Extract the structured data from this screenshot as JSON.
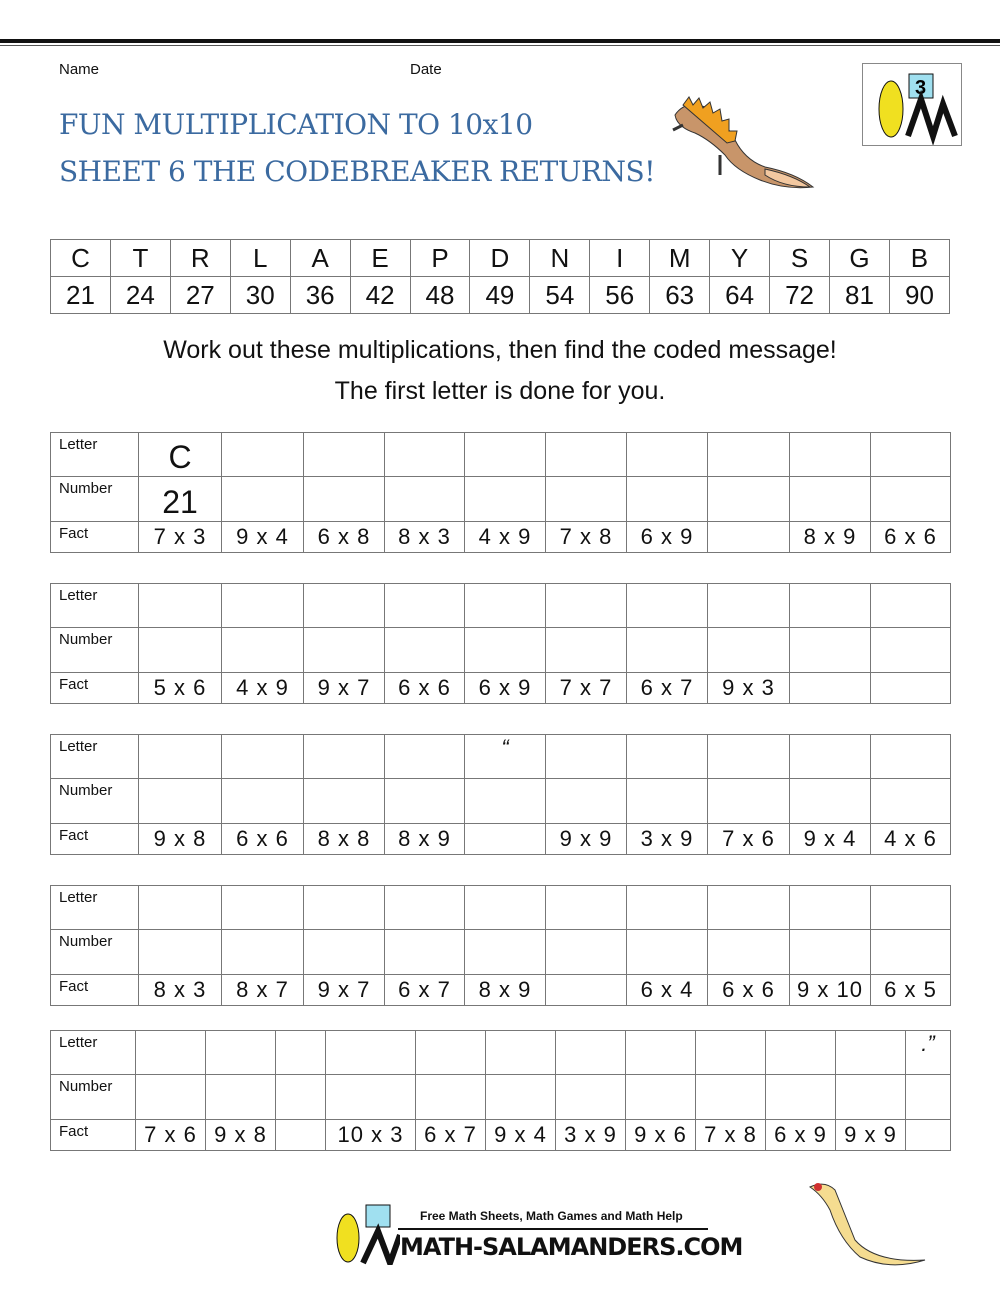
{
  "header": {
    "name_label": "Name",
    "date_label": "Date",
    "title_line1": "FUN MULTIPLICATION TO 10x10",
    "title_line2": "SHEET 6 THE CODEBREAKER RETURNS!",
    "corner_logo_number": "3"
  },
  "code_key": {
    "letters": [
      "C",
      "T",
      "R",
      "L",
      "A",
      "E",
      "P",
      "D",
      "N",
      "I",
      "M",
      "Y",
      "S",
      "G",
      "B"
    ],
    "numbers": [
      "21",
      "24",
      "27",
      "30",
      "36",
      "42",
      "48",
      "49",
      "54",
      "56",
      "63",
      "64",
      "72",
      "81",
      "90"
    ]
  },
  "instructions": {
    "line1": "Work out these multiplications, then find the coded message!",
    "line2": "The first letter is done for you."
  },
  "row_labels": {
    "letter": "Letter",
    "number": "Number",
    "fact": "Fact"
  },
  "worksheets": [
    {
      "letters": [
        "C",
        "",
        "",
        "",
        "",
        "",
        "",
        "",
        "",
        ""
      ],
      "numbers": [
        "21",
        "",
        "",
        "",
        "",
        "",
        "",
        "",
        "",
        ""
      ],
      "facts": [
        "7 x 3",
        "9 x 4",
        "6 x 8",
        "8 x 3",
        "4 x 9",
        "7 x 8",
        "6 x 9",
        "",
        "8 x 9",
        "6 x 6"
      ]
    },
    {
      "letters": [
        "",
        "",
        "",
        "",
        "",
        "",
        "",
        "",
        "",
        ""
      ],
      "numbers": [
        "",
        "",
        "",
        "",
        "",
        "",
        "",
        "",
        "",
        ""
      ],
      "facts": [
        "5 x 6",
        "4 x 9",
        "9 x 7",
        "6 x 6",
        "6 x 9",
        "7 x 7",
        "6 x 7",
        "9 x 3",
        "",
        ""
      ]
    },
    {
      "letters": [
        "",
        "",
        "",
        "",
        "“",
        "",
        "",
        "",
        "",
        ""
      ],
      "numbers": [
        "",
        "",
        "",
        "",
        "",
        "",
        "",
        "",
        "",
        ""
      ],
      "facts": [
        "9 x 8",
        "6 x 6",
        "8 x 8",
        "8 x 9",
        "",
        "9 x 9",
        "3 x 9",
        "7 x 6",
        "9 x 4",
        "4 x 6"
      ]
    },
    {
      "letters": [
        "",
        "",
        "",
        "",
        "",
        "",
        "",
        "",
        "",
        ""
      ],
      "numbers": [
        "",
        "",
        "",
        "",
        "",
        "",
        "",
        "",
        "",
        ""
      ],
      "facts": [
        "8 x 3",
        "8 x 7",
        "9 x 7",
        "6 x 7",
        "8 x 9",
        "",
        "6 x 4",
        "6 x 6",
        "9 x 10",
        "6 x 5"
      ]
    },
    {
      "letters": [
        "",
        "",
        "",
        "",
        "",
        "",
        "",
        "",
        "",
        "",
        "",
        ".”"
      ],
      "numbers": [
        "",
        "",
        "",
        "",
        "",
        "",
        "",
        "",
        "",
        "",
        "",
        ""
      ],
      "facts": [
        "7 x 6",
        "9 x 8",
        "",
        "10 x 3",
        "6 x 7",
        "9 x 4",
        "3 x 9",
        "9 x 6",
        "7 x 8",
        "6 x 9",
        "9 x 9",
        ""
      ]
    }
  ],
  "footer": {
    "tagline": "Free Math Sheets, Math Games and Math Help",
    "brand": "MATH-SALAMANDERS.COM"
  },
  "colors": {
    "title": "#3b6aa0",
    "salamander_body": "#c8956a",
    "salamander_crest": "#f0a020",
    "logo_yellow": "#f0e020",
    "logo_box": "#a0e0f0"
  }
}
